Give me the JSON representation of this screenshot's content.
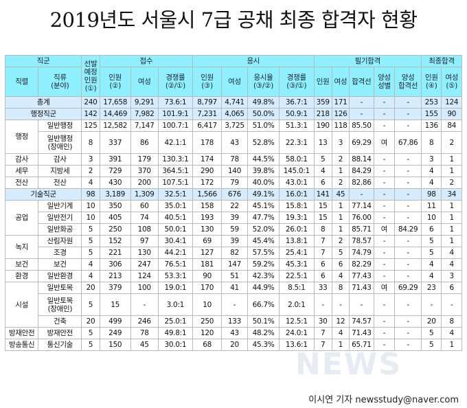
{
  "title": "2019년도 서울시 7급 공채 최종 합격자 현황",
  "byline": "이시연 기자  newsstudy@naver.com",
  "watermark": "NEWS",
  "colors": {
    "header_bg": "#8ff0ff",
    "summary_bg": "#d6ecff",
    "border": "#b9b9b9"
  },
  "header": {
    "jikgun": "직군",
    "jikryeol": "직렬",
    "jikryu": "직류\n(분야)",
    "seonbal": "선발\n예정\n인원\n(①)",
    "jeopsu": "접수",
    "eungsi": "응시",
    "pilgi": "필기합격",
    "choejong": "최종합격",
    "j_inwon": "인원\n(②)",
    "j_yeoseong": "여성",
    "j_ratio": "경쟁률\n(②/①)",
    "e_inwon": "인원\n(③)",
    "e_yeoseong": "여성",
    "e_rate": "응시율\n(③/②)",
    "e_ratio": "경쟁률\n(③/①)",
    "p_inwon": "인원",
    "p_yeoseong": "여성",
    "p_line": "합격선",
    "p_yangseong": "양성\n성별",
    "p_yline": "양성\n합격선",
    "c_inwon": "인원\n(④)",
    "c_yeoseong": "여성\n(⑤)"
  },
  "rows": [
    {
      "group": "총계",
      "summary": true,
      "cells": [
        "240",
        "17,658",
        "9,291",
        "73.6:1",
        "8,797",
        "4,741",
        "49.8%",
        "36.7:1",
        "359",
        "171",
        "-",
        "-",
        "-",
        "253",
        "124"
      ]
    },
    {
      "group": "행정직군",
      "summary": true,
      "cells": [
        "142",
        "14,469",
        "7,982",
        "101.9:1",
        "7,231",
        "4,065",
        "50.0%",
        "50.9:1",
        "218",
        "126",
        "-",
        "-",
        "-",
        "155",
        "90"
      ]
    },
    {
      "ryeol": "행정",
      "ryu": "일반행정",
      "cells": [
        "125",
        "12,582",
        "7,147",
        "100.7:1",
        "6,417",
        "3,725",
        "51.0%",
        "51.3:1",
        "190",
        "118",
        "85.50",
        "-",
        "-",
        "136",
        "84"
      ]
    },
    {
      "ryu": "일반행정\n(장애인)",
      "tall": true,
      "cells": [
        "8",
        "337",
        "86",
        "42.1:1",
        "178",
        "43",
        "52.8%",
        "22.3:1",
        "13",
        "3",
        "69.29",
        "여",
        "67.86",
        "8",
        "2"
      ]
    },
    {
      "ryeol": "감사",
      "ryu": "감사",
      "cells": [
        "3",
        "391",
        "179",
        "130.3:1",
        "174",
        "78",
        "44.5%",
        "58.0:1",
        "5",
        "2",
        "88.14",
        "-",
        "-",
        "3",
        "1"
      ]
    },
    {
      "ryeol": "세무",
      "ryu": "지방세",
      "cells": [
        "2",
        "729",
        "370",
        "364.5:1",
        "290",
        "140",
        "39.8%",
        "145.0:1",
        "4",
        "1",
        "84.29",
        "-",
        "-",
        "4",
        "1"
      ]
    },
    {
      "ryeol": "전산",
      "ryu": "전산",
      "cells": [
        "4",
        "430",
        "200",
        "107.5:1",
        "172",
        "79",
        "40.0%",
        "43.0:1",
        "6",
        "2",
        "82.86",
        "-",
        "-",
        "4",
        "2"
      ]
    },
    {
      "group": "기술직군",
      "summary": true,
      "cells": [
        "98",
        "3,189",
        "1,309",
        "32.5:1",
        "1,566",
        "676",
        "49.1%",
        "16.0:1",
        "141",
        "45",
        "-",
        "-",
        "-",
        "98",
        "34"
      ]
    },
    {
      "ryeol": "공업",
      "ryu": "일반기계",
      "cells": [
        "10",
        "350",
        "60",
        "35.0:1",
        "158",
        "22",
        "45.1%",
        "15.8:1",
        "15",
        "1",
        "77.14",
        "-",
        "-",
        "11",
        "1"
      ]
    },
    {
      "ryu": "일반전기",
      "cells": [
        "10",
        "405",
        "74",
        "40.5:1",
        "193",
        "39",
        "47.7%",
        "19.3:1",
        "15",
        "1",
        "76.00",
        "-",
        "-",
        "10",
        "1"
      ]
    },
    {
      "ryu": "일반화공",
      "cells": [
        "5",
        "250",
        "108",
        "50.0:1",
        "130",
        "59",
        "52.0%",
        "26.0:1",
        "8",
        "1",
        "85.71",
        "여",
        "84.29",
        "6",
        "1"
      ]
    },
    {
      "ryeol": "녹지",
      "ryu": "산림자원",
      "cells": [
        "5",
        "152",
        "97",
        "30.4:1",
        "69",
        "39",
        "45.4%",
        "13.8:1",
        "7",
        "2",
        "78.57",
        "-",
        "-",
        "5",
        "1"
      ]
    },
    {
      "ryu": "조경",
      "cells": [
        "5",
        "221",
        "130",
        "44.2:1",
        "127",
        "82",
        "57.5%",
        "25.4:1",
        "7",
        "5",
        "74.79",
        "-",
        "-",
        "5",
        "4"
      ]
    },
    {
      "ryeol": "보건",
      "ryu": "보건",
      "cells": [
        "4",
        "306",
        "247",
        "76.5:1",
        "181",
        "147",
        "59.2%",
        "45.3:1",
        "6",
        "6",
        "82.29",
        "-",
        "-",
        "4",
        "4"
      ]
    },
    {
      "ryeol": "환경",
      "ryu": "일반환경",
      "cells": [
        "4",
        "213",
        "124",
        "53.3:1",
        "90",
        "51",
        "42.3%",
        "22.5:1",
        "6",
        "4",
        "77.43",
        "-",
        "-",
        "4",
        "3"
      ]
    },
    {
      "ryeol": "시설",
      "ryu": "일반토목",
      "cells": [
        "20",
        "379",
        "100",
        "19.0:1",
        "170",
        "41",
        "44.9%",
        "8.5:1",
        "33",
        "8",
        "71.43",
        "여",
        "69.29",
        "23",
        "6"
      ]
    },
    {
      "ryu": "일반토목\n(장애인)",
      "tall": true,
      "cells": [
        "5",
        "15",
        "-",
        "3.0:1",
        "10",
        "-",
        "66.7%",
        "2.0:1",
        "-",
        "-",
        "-",
        "-",
        "-",
        "-",
        "-"
      ]
    },
    {
      "ryu": "건축",
      "cells": [
        "20",
        "499",
        "246",
        "25.0:1",
        "250",
        "133",
        "50.1%",
        "12.5:1",
        "30",
        "12",
        "74.57",
        "-",
        "-",
        "20",
        "8"
      ]
    },
    {
      "ryeol": "방재안전",
      "ryu": "방재안전",
      "cells": [
        "5",
        "249",
        "78",
        "49.8:1",
        "120",
        "43",
        "48.2%",
        "24.0:1",
        "7",
        "4",
        "71.43",
        "-",
        "-",
        "5",
        "4"
      ]
    },
    {
      "ryeol": "방송통신",
      "ryu": "통신기술",
      "cells": [
        "5",
        "150",
        "45",
        "30.0:1",
        "68",
        "20",
        "45.3%",
        "13.6:1",
        "7",
        "1",
        "65.71",
        "-",
        "-",
        "5",
        "1"
      ]
    }
  ]
}
